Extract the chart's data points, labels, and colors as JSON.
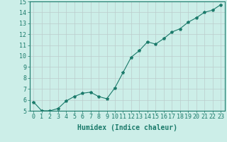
{
  "x": [
    0,
    1,
    2,
    3,
    4,
    5,
    6,
    7,
    8,
    9,
    10,
    11,
    12,
    13,
    14,
    15,
    16,
    17,
    18,
    19,
    20,
    21,
    22,
    23
  ],
  "y": [
    5.8,
    5.0,
    5.0,
    5.2,
    5.9,
    6.3,
    6.6,
    6.7,
    6.3,
    6.1,
    7.1,
    8.5,
    9.9,
    10.5,
    11.3,
    11.1,
    11.6,
    12.2,
    12.5,
    13.1,
    13.5,
    14.0,
    14.2,
    14.7
  ],
  "line_color": "#1a7a6a",
  "marker": "*",
  "marker_size": 3,
  "background_color": "#cceee8",
  "grid_color": "#bbcccc",
  "xlabel": "Humidex (Indice chaleur)",
  "xlabel_fontsize": 7,
  "ylim": [
    5,
    15
  ],
  "xlim_min": -0.5,
  "xlim_max": 23.5,
  "yticks": [
    5,
    6,
    7,
    8,
    9,
    10,
    11,
    12,
    13,
    14,
    15
  ],
  "xticks": [
    0,
    1,
    2,
    3,
    4,
    5,
    6,
    7,
    8,
    9,
    10,
    11,
    12,
    13,
    14,
    15,
    16,
    17,
    18,
    19,
    20,
    21,
    22,
    23
  ],
  "tick_fontsize": 6,
  "tick_color": "#1a7a6a",
  "spine_color": "#1a7a6a",
  "linewidth": 0.8
}
